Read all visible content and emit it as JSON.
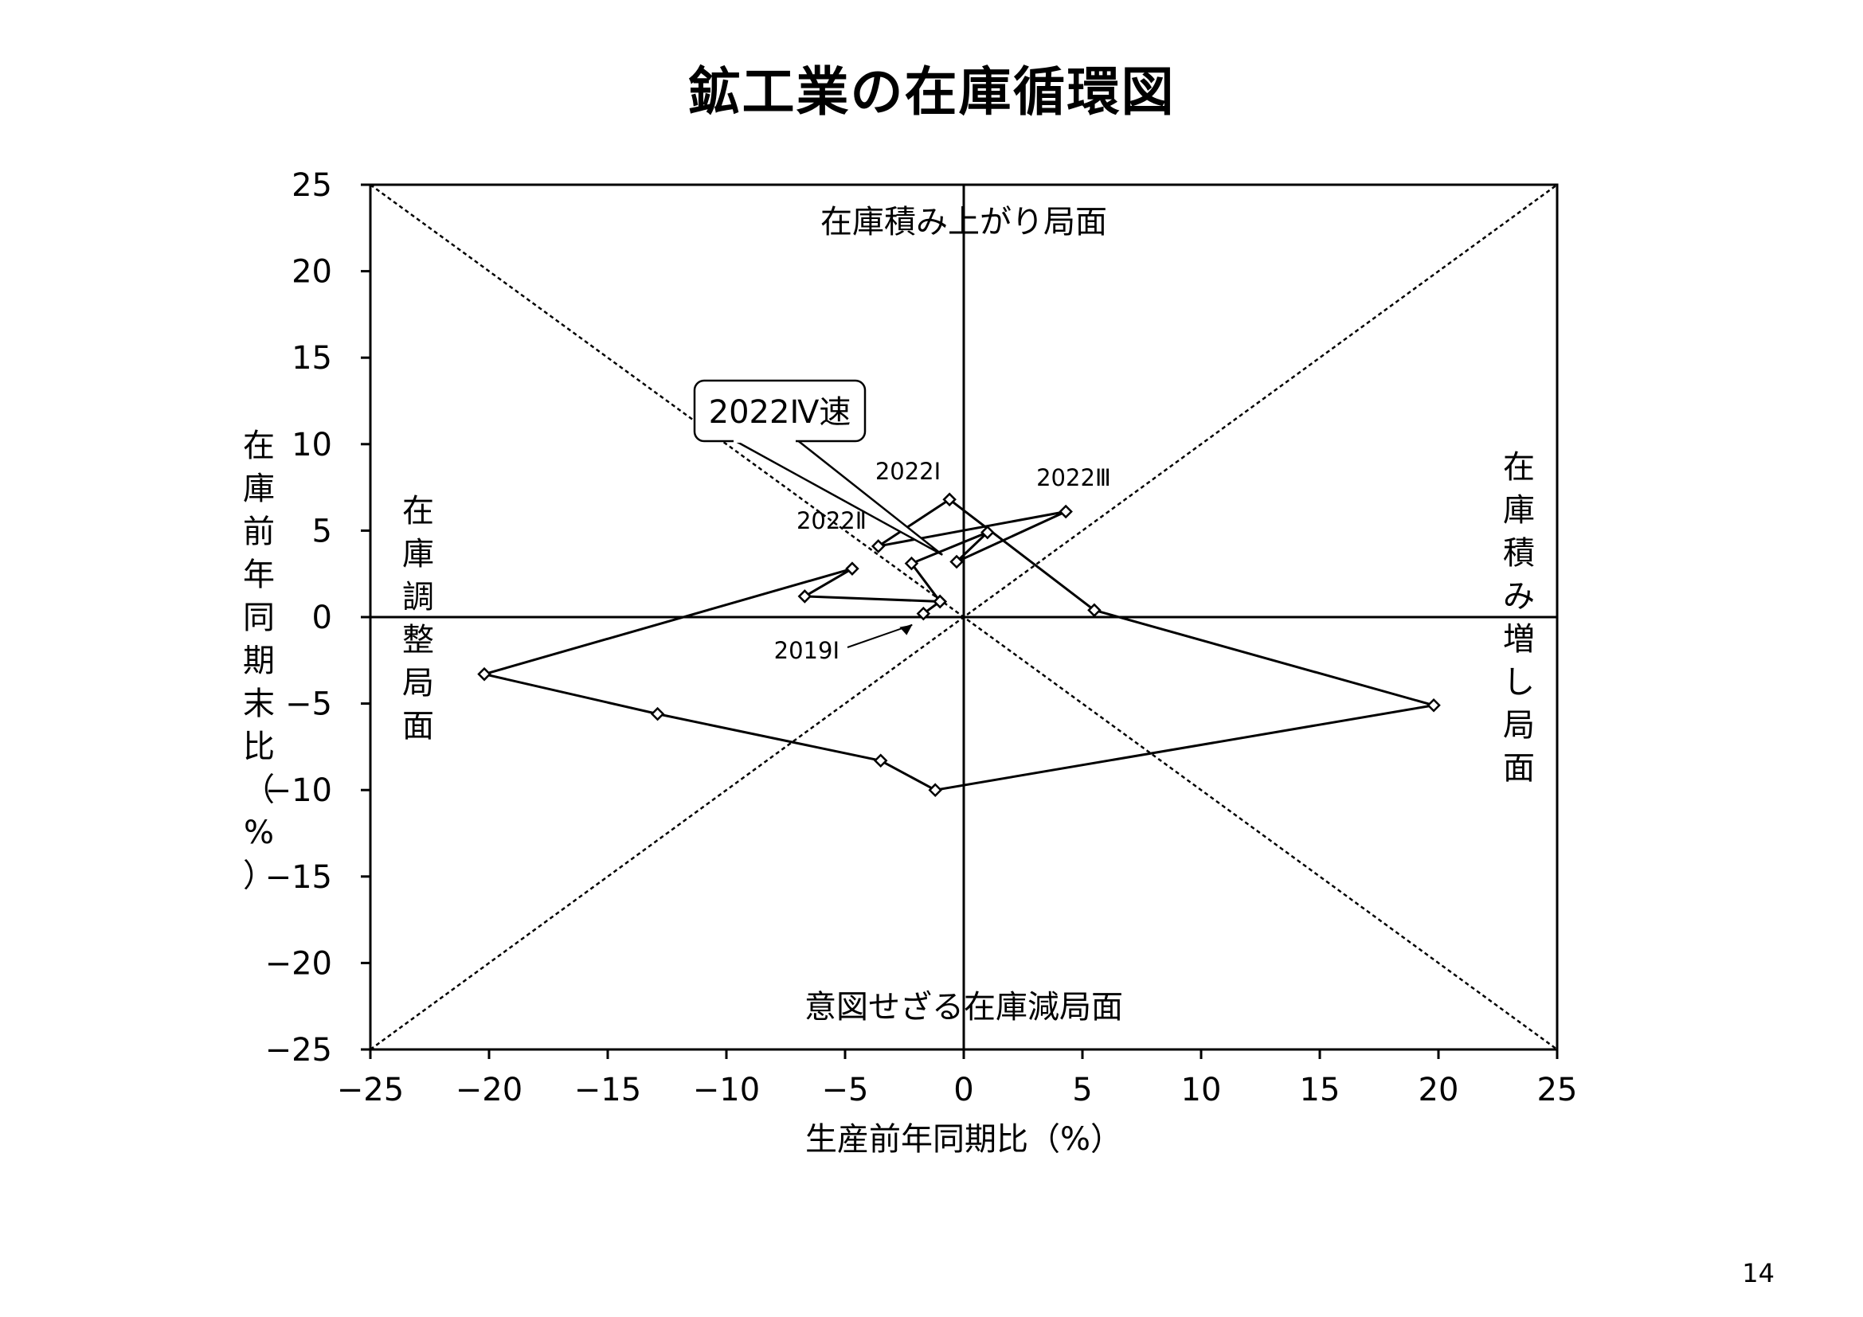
{
  "page": {
    "title": "鉱工業の在庫循環図",
    "page_number": "14"
  },
  "chart_data": {
    "type": "scatter",
    "xlabel": "生産前年同期比（%）",
    "ylabel": "在庫前年同期末比（%）",
    "xlim": [
      -25,
      25
    ],
    "ylim": [
      -25,
      25
    ],
    "x_ticks": [
      -25,
      -20,
      -15,
      -10,
      -5,
      0,
      5,
      10,
      15,
      20,
      25
    ],
    "y_ticks": [
      -25,
      -20,
      -15,
      -10,
      -5,
      0,
      5,
      10,
      15,
      20,
      25
    ],
    "grid": false,
    "legend": "none",
    "series": [
      {
        "connected": true,
        "marker": "diamond",
        "points": [
          {
            "x": -1.7,
            "y": 0.2
          },
          {
            "x": -1.0,
            "y": 0.9
          },
          {
            "x": -6.7,
            "y": 1.2
          },
          {
            "x": -4.7,
            "y": 2.8
          },
          {
            "x": -20.2,
            "y": -3.3
          },
          {
            "x": -12.9,
            "y": -5.6
          },
          {
            "x": -3.5,
            "y": -8.3
          },
          {
            "x": -1.2,
            "y": -10.0
          },
          {
            "x": 19.8,
            "y": -5.1
          },
          {
            "x": 5.5,
            "y": 0.4
          },
          {
            "x": -0.6,
            "y": 6.8
          },
          {
            "x": -3.6,
            "y": 4.1
          },
          {
            "x": 4.3,
            "y": 6.1
          },
          {
            "x": -0.3,
            "y": 3.2
          },
          {
            "x": 1.0,
            "y": 4.9
          },
          {
            "x": -2.2,
            "y": 3.1
          },
          {
            "x": -1.0,
            "y": 0.9
          }
        ]
      }
    ],
    "reference_lines": [
      {
        "from": [
          -25,
          -25
        ],
        "to": [
          25,
          25
        ],
        "style": "dotted"
      },
      {
        "from": [
          -25,
          25
        ],
        "to": [
          25,
          -25
        ],
        "style": "dotted"
      }
    ],
    "phase_labels": {
      "top": "在庫積み上がり局面",
      "bottom": "意図せざる在庫減局面",
      "left": "在庫調整局面",
      "right": "在庫積み増し局面"
    },
    "annotations": [
      {
        "text": "2019Ⅰ",
        "x": -1.7,
        "y": 0.2,
        "arrow": true
      },
      {
        "text": "2022Ⅰ",
        "x": -0.6,
        "y": 6.8
      },
      {
        "text": "2022Ⅱ",
        "x": -3.6,
        "y": 4.1
      },
      {
        "text": "2022Ⅲ",
        "x": 4.3,
        "y": 6.1
      }
    ],
    "callout": {
      "text": "2022Ⅳ速",
      "x": -0.9,
      "y": 3.6
    }
  }
}
